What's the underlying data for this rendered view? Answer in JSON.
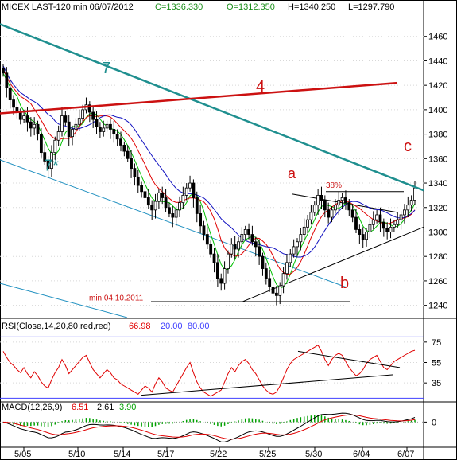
{
  "header": {
    "symbol": "MICEX LAST-120 min",
    "date": "06/07/2012",
    "close": "C=1336.330",
    "open": "O=1312.350",
    "high": "H=1340.250",
    "low": "L=1297.790"
  },
  "colors": {
    "price_up": "#000000",
    "ma_fast": "#00c000",
    "ma_mid": "#e00000",
    "ma_slow": "#1010c0",
    "trend_teal": "#1f8f8f",
    "trend_red": "#cc1111",
    "channel_blue": "#2090c0",
    "rsi_line": "#e00000",
    "macd_line": "#000000",
    "signal_line": "#e00000",
    "hist": "#00a000",
    "guide_blue": "#4040ff"
  },
  "chart_data": [
    {
      "type": "candlestick",
      "title": "MICEX LAST-120 min",
      "y_axis": {
        "ticks": [
          1240,
          1260,
          1280,
          1300,
          1320,
          1340,
          1360,
          1380,
          1400,
          1420,
          1440,
          1460
        ],
        "range": [
          1230,
          1480
        ]
      },
      "x_axis": {
        "ticks": [
          "5/05",
          "5/10",
          "5/14",
          "5/17",
          "5/22",
          "5/25",
          "5/30",
          "6/04",
          "6/07"
        ]
      },
      "ohlc_close": [
        1430,
        1418,
        1408,
        1402,
        1398,
        1392,
        1395,
        1390,
        1385,
        1388,
        1380,
        1365,
        1358,
        1352,
        1365,
        1375,
        1382,
        1395,
        1390,
        1378,
        1384,
        1388,
        1393,
        1400,
        1404,
        1398,
        1392,
        1386,
        1382,
        1385,
        1388,
        1384,
        1380,
        1376,
        1371,
        1366,
        1360,
        1352,
        1345,
        1338,
        1333,
        1328,
        1322,
        1318,
        1325,
        1332,
        1328,
        1320,
        1315,
        1312,
        1318,
        1324,
        1330,
        1336,
        1340,
        1328,
        1315,
        1305,
        1298,
        1290,
        1282,
        1275,
        1262,
        1258,
        1270,
        1282,
        1290,
        1286,
        1292,
        1298,
        1302,
        1298,
        1292,
        1288,
        1280,
        1270,
        1262,
        1255,
        1250,
        1248,
        1256,
        1266,
        1275,
        1282,
        1288,
        1292,
        1298,
        1304,
        1310,
        1316,
        1322,
        1330,
        1326,
        1318,
        1312,
        1318,
        1322,
        1326,
        1328,
        1324,
        1318,
        1312,
        1302,
        1298,
        1294,
        1300,
        1306,
        1310,
        1314,
        1308,
        1303,
        1300,
        1304,
        1306,
        1310,
        1314,
        1318,
        1322,
        1326,
        1336
      ],
      "annotations": [
        {
          "text": "7",
          "color": "#1f8f8f"
        },
        {
          "text": "4",
          "color": "#cc1111"
        },
        {
          "text": "7*",
          "color": "#1f8f8f"
        },
        {
          "text": "a",
          "color": "#cc1111"
        },
        {
          "text": "b",
          "color": "#cc1111"
        },
        {
          "text": "c",
          "color": "#cc1111"
        },
        {
          "text": "38%",
          "color": "#cc1111"
        },
        {
          "text": "min 04.10.2011",
          "color": "#cc1111"
        }
      ],
      "support_levels": [
        {
          "label": "min 04.10.2011",
          "value": 1243
        }
      ]
    },
    {
      "type": "line",
      "title": "RSI(Close,14,20,80,red,red)",
      "values_text": [
        "66.98",
        "20.00",
        "80.00"
      ],
      "y_axis": {
        "ticks": [
          35,
          55,
          75
        ],
        "range": [
          18,
          85
        ]
      },
      "guide_levels": [
        20,
        80
      ],
      "rsi": [
        66,
        60,
        55,
        52,
        48,
        45,
        50,
        44,
        40,
        46,
        42,
        36,
        32,
        30,
        38,
        45,
        50,
        58,
        52,
        44,
        48,
        52,
        56,
        60,
        62,
        55,
        48,
        44,
        40,
        44,
        48,
        45,
        40,
        38,
        34,
        32,
        30,
        28,
        26,
        24,
        28,
        32,
        30,
        26,
        34,
        40,
        36,
        30,
        28,
        26,
        32,
        38,
        44,
        50,
        55,
        45,
        36,
        30,
        26,
        24,
        22,
        24,
        26,
        28,
        36,
        44,
        50,
        46,
        52,
        56,
        58,
        54,
        48,
        44,
        38,
        32,
        28,
        25,
        24,
        26,
        32,
        40,
        48,
        54,
        58,
        60,
        62,
        64,
        66,
        68,
        70,
        72,
        66,
        58,
        52,
        58,
        62,
        64,
        62,
        56,
        50,
        46,
        42,
        44,
        48,
        54,
        58,
        60,
        62,
        56,
        50,
        48,
        52,
        56,
        58,
        60,
        62,
        64,
        66,
        67
      ]
    },
    {
      "type": "line",
      "title": "MACD(12,26,9)",
      "values_text": [
        "6.51",
        "2.61",
        "3.90"
      ],
      "y_axis": {
        "ticks": [
          0
        ],
        "range": [
          -26,
          10
        ]
      }
    }
  ]
}
